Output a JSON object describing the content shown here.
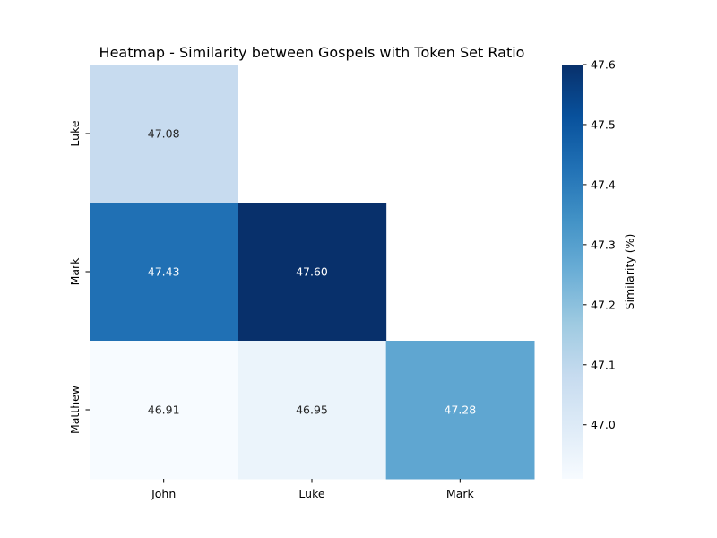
{
  "chart_data": {
    "type": "heatmap",
    "title": "Heatmap - Similarity between Gospels with Token Set Ratio",
    "x_categories": [
      "John",
      "Luke",
      "Mark"
    ],
    "y_categories": [
      "Luke",
      "Mark",
      "Matthew"
    ],
    "values": [
      [
        47.08,
        null,
        null
      ],
      [
        47.43,
        47.6,
        null
      ],
      [
        46.91,
        46.95,
        47.28
      ]
    ],
    "cell_labels": [
      [
        "47.08",
        "",
        ""
      ],
      [
        "47.43",
        "47.60",
        ""
      ],
      [
        "46.91",
        "46.95",
        "47.28"
      ]
    ],
    "colormap": "Blues",
    "colorbar": {
      "label": "Similarity (%)",
      "range": [
        46.91,
        47.6
      ],
      "ticks": [
        47.0,
        47.1,
        47.2,
        47.3,
        47.4,
        47.5,
        47.6
      ],
      "tick_labels": [
        "47.0",
        "47.1",
        "47.2",
        "47.3",
        "47.4",
        "47.5",
        "47.6"
      ]
    },
    "grid": false,
    "legend": "colorbar-right"
  }
}
